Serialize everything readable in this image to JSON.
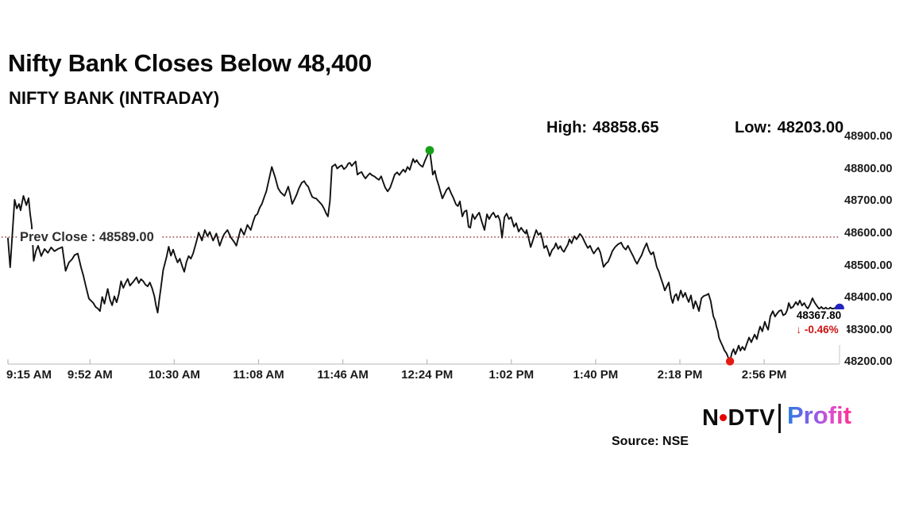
{
  "title": "Nifty Bank Closes Below 48,400",
  "subtitle": "NIFTY BANK (INTRADAY)",
  "stats": {
    "high_label": "High:",
    "high_value": "48858.65",
    "low_label": "Low:",
    "low_value": "48203.00"
  },
  "prev_close_label": "Prev Close : 48589.00",
  "last_quote": {
    "price": "48367.80",
    "arrow": "↓",
    "change": "-0.46%"
  },
  "footer": {
    "source": "Source: NSE",
    "logo_ndtv_n": "N",
    "logo_ndtv_dtv": "DTV",
    "logo_profit": "Profit"
  },
  "colors": {
    "line": "#111111",
    "prev_close_line": "#8b1b1b",
    "high_dot": "#18a018",
    "low_dot": "#e51b12",
    "last_dot": "#2323bd",
    "change_red": "#cc1111",
    "axis": "#cfcfcf",
    "tick": "#b9b9b9"
  },
  "chart_data": {
    "type": "line",
    "title": "NIFTY BANK (INTRADAY)",
    "xlabel": "",
    "ylabel": "",
    "x_unit": "minutes since 9:15 AM",
    "session": {
      "start": "9:15 AM",
      "end": "3:30 PM"
    },
    "x_ticks": [
      {
        "label": "9:15 AM",
        "t": 0
      },
      {
        "label": "9:52 AM",
        "t": 37
      },
      {
        "label": "10:30 AM",
        "t": 75
      },
      {
        "label": "11:08 AM",
        "t": 113
      },
      {
        "label": "11:46 AM",
        "t": 151
      },
      {
        "label": "12:24 PM",
        "t": 189
      },
      {
        "label": "1:02 PM",
        "t": 227
      },
      {
        "label": "1:40 PM",
        "t": 265
      },
      {
        "label": "2:18 PM",
        "t": 303
      },
      {
        "label": "2:56 PM",
        "t": 341
      }
    ],
    "y_ticks": [
      48900,
      48800,
      48700,
      48600,
      48500,
      48400,
      48300,
      48200
    ],
    "ylim": [
      48200,
      48900
    ],
    "grid": false,
    "legend": false,
    "prev_close": 48589.0,
    "high": 48858.65,
    "low": 48203.0,
    "close": 48367.8,
    "change_pct": -0.46,
    "markers": {
      "high": {
        "t": 190.2,
        "p": 48858.65
      },
      "low": {
        "t": 325.6,
        "p": 48203.0
      },
      "last": {
        "t": 375,
        "p": 48367.8
      }
    },
    "series": [
      [
        0,
        48585
      ],
      [
        0.5,
        48540
      ],
      [
        1,
        48495
      ],
      [
        2,
        48600
      ],
      [
        3,
        48705
      ],
      [
        4,
        48678
      ],
      [
        5,
        48692
      ],
      [
        5.7,
        48672
      ],
      [
        7,
        48717
      ],
      [
        8.3,
        48688
      ],
      [
        9.3,
        48710
      ],
      [
        10,
        48662
      ],
      [
        10.7,
        48625
      ],
      [
        11.6,
        48515
      ],
      [
        12.6,
        48545
      ],
      [
        13.6,
        48562
      ],
      [
        15,
        48530
      ],
      [
        16.5,
        48552
      ],
      [
        18,
        48540
      ],
      [
        19.5,
        48557
      ],
      [
        21,
        48545
      ],
      [
        22.5,
        48552
      ],
      [
        24.5,
        48558
      ],
      [
        26,
        48484
      ],
      [
        27.5,
        48510
      ],
      [
        29,
        48521
      ],
      [
        30,
        48533
      ],
      [
        31.5,
        48538
      ],
      [
        33,
        48494
      ],
      [
        34,
        48470
      ],
      [
        35,
        48440
      ],
      [
        36.5,
        48398
      ],
      [
        37.5,
        48391
      ],
      [
        38.5,
        48384
      ],
      [
        39.5,
        48372
      ],
      [
        40.5,
        48367
      ],
      [
        41.5,
        48359
      ],
      [
        42.5,
        48403
      ],
      [
        43.5,
        48382
      ],
      [
        45,
        48428
      ],
      [
        46,
        48395
      ],
      [
        47,
        48377
      ],
      [
        48,
        48405
      ],
      [
        49,
        48386
      ],
      [
        50,
        48412
      ],
      [
        51,
        48452
      ],
      [
        52,
        48431
      ],
      [
        53,
        48446
      ],
      [
        54,
        48459
      ],
      [
        55,
        48438
      ],
      [
        56.5,
        48450
      ],
      [
        58,
        48464
      ],
      [
        59,
        48446
      ],
      [
        60,
        48458
      ],
      [
        61,
        48452
      ],
      [
        62,
        48441
      ],
      [
        63,
        48436
      ],
      [
        64,
        48448
      ],
      [
        65,
        48430
      ],
      [
        66,
        48406
      ],
      [
        66.8,
        48375
      ],
      [
        67.5,
        48354
      ],
      [
        68.2,
        48392
      ],
      [
        69,
        48432
      ],
      [
        70,
        48486
      ],
      [
        71.5,
        48526
      ],
      [
        72.5,
        48559
      ],
      [
        73.5,
        48531
      ],
      [
        74.5,
        48550
      ],
      [
        75.5,
        48528
      ],
      [
        76.5,
        48510
      ],
      [
        77.5,
        48522
      ],
      [
        78.5,
        48500
      ],
      [
        79.5,
        48481
      ],
      [
        80.5,
        48512
      ],
      [
        81.5,
        48530
      ],
      [
        82.5,
        48522
      ],
      [
        83.5,
        48538
      ],
      [
        85,
        48575
      ],
      [
        86,
        48603
      ],
      [
        87.5,
        48578
      ],
      [
        88.8,
        48611
      ],
      [
        90,
        48592
      ],
      [
        91,
        48605
      ],
      [
        92.5,
        48578
      ],
      [
        94,
        48600
      ],
      [
        95.5,
        48562
      ],
      [
        96.5,
        48582
      ],
      [
        97.5,
        48598
      ],
      [
        99,
        48611
      ],
      [
        100.5,
        48588
      ],
      [
        102,
        48574
      ],
      [
        103,
        48562
      ],
      [
        104,
        48590
      ],
      [
        105,
        48615
      ],
      [
        106.5,
        48596
      ],
      [
        108,
        48627
      ],
      [
        109.5,
        48611
      ],
      [
        110.5,
        48635
      ],
      [
        111.5,
        48655
      ],
      [
        112.5,
        48661
      ],
      [
        113.5,
        48680
      ],
      [
        114.5,
        48692
      ],
      [
        115.5,
        48712
      ],
      [
        116.5,
        48731
      ],
      [
        117.5,
        48762
      ],
      [
        119,
        48807
      ],
      [
        120.5,
        48775
      ],
      [
        121.8,
        48741
      ],
      [
        123,
        48728
      ],
      [
        124.7,
        48717
      ],
      [
        126.4,
        48746
      ],
      [
        127.3,
        48721
      ],
      [
        128.2,
        48692
      ],
      [
        129.2,
        48706
      ],
      [
        130.2,
        48721
      ],
      [
        131.2,
        48740
      ],
      [
        132.5,
        48758
      ],
      [
        133.6,
        48763
      ],
      [
        134.5,
        48752
      ],
      [
        135.4,
        48746
      ],
      [
        136.3,
        48729
      ],
      [
        137.2,
        48714
      ],
      [
        138.2,
        48710
      ],
      [
        139,
        48709
      ],
      [
        140,
        48701
      ],
      [
        141.5,
        48690
      ],
      [
        142.5,
        48678
      ],
      [
        143.5,
        48662
      ],
      [
        144.3,
        48653
      ],
      [
        145.2,
        48701
      ],
      [
        146.1,
        48807
      ],
      [
        147,
        48812
      ],
      [
        147.6,
        48815
      ],
      [
        148.5,
        48802
      ],
      [
        149.5,
        48808
      ],
      [
        150.5,
        48812
      ],
      [
        151.5,
        48800
      ],
      [
        152.5,
        48806
      ],
      [
        153.5,
        48818
      ],
      [
        154.2,
        48820
      ],
      [
        155,
        48810
      ],
      [
        156,
        48818
      ],
      [
        156.8,
        48824
      ],
      [
        157.6,
        48783
      ],
      [
        158.5,
        48788
      ],
      [
        159.5,
        48791
      ],
      [
        160.3,
        48780
      ],
      [
        161.2,
        48771
      ],
      [
        162.2,
        48780
      ],
      [
        163.2,
        48787
      ],
      [
        164.2,
        48781
      ],
      [
        165.2,
        48778
      ],
      [
        166.2,
        48772
      ],
      [
        167.3,
        48767
      ],
      [
        168.3,
        48778
      ],
      [
        169.2,
        48760
      ],
      [
        170.1,
        48743
      ],
      [
        171.2,
        48731
      ],
      [
        172.3,
        48742
      ],
      [
        173.3,
        48761
      ],
      [
        174.4,
        48783
      ],
      [
        175.5,
        48790
      ],
      [
        176.5,
        48782
      ],
      [
        177.5,
        48792
      ],
      [
        178.3,
        48799
      ],
      [
        179.2,
        48791
      ],
      [
        180.2,
        48807
      ],
      [
        181.2,
        48798
      ],
      [
        182,
        48816
      ],
      [
        182.7,
        48832
      ],
      [
        183.5,
        48821
      ],
      [
        184.3,
        48828
      ],
      [
        185.2,
        48818
      ],
      [
        186,
        48812
      ],
      [
        187,
        48807
      ],
      [
        188.1,
        48827
      ],
      [
        189,
        48841
      ],
      [
        190.2,
        48858.65
      ],
      [
        191,
        48816
      ],
      [
        191.6,
        48783
      ],
      [
        192.5,
        48795
      ],
      [
        193.3,
        48770
      ],
      [
        194.1,
        48753
      ],
      [
        195,
        48731
      ],
      [
        195.9,
        48709
      ],
      [
        196.8,
        48722
      ],
      [
        197.8,
        48736
      ],
      [
        198.8,
        48743
      ],
      [
        199.8,
        48726
      ],
      [
        200.8,
        48712
      ],
      [
        202,
        48691
      ],
      [
        202.9,
        48685
      ],
      [
        203.8,
        48700
      ],
      [
        204.9,
        48653
      ],
      [
        205.8,
        48668
      ],
      [
        206.8,
        48672
      ],
      [
        207.7,
        48621
      ],
      [
        208.5,
        48618
      ],
      [
        209.5,
        48660
      ],
      [
        210.5,
        48645
      ],
      [
        211.5,
        48656
      ],
      [
        212.5,
        48665
      ],
      [
        213.7,
        48636
      ],
      [
        214.9,
        48611
      ],
      [
        216,
        48660
      ],
      [
        217,
        48645
      ],
      [
        218,
        48658
      ],
      [
        218.9,
        48665
      ],
      [
        220,
        48650
      ],
      [
        221,
        48656
      ],
      [
        221.9,
        48640
      ],
      [
        222.8,
        48587
      ],
      [
        223.9,
        48651
      ],
      [
        224.9,
        48662
      ],
      [
        225.9,
        48645
      ],
      [
        226.9,
        48651
      ],
      [
        228.2,
        48621
      ],
      [
        229.2,
        48632
      ],
      [
        230.3,
        48606
      ],
      [
        231.4,
        48618
      ],
      [
        232.4,
        48608
      ],
      [
        233.4,
        48600
      ],
      [
        233.9,
        48611
      ],
      [
        234.6,
        48591
      ],
      [
        235.3,
        48570
      ],
      [
        235.7,
        48558
      ],
      [
        236.4,
        48572
      ],
      [
        237.1,
        48587
      ],
      [
        238.2,
        48611
      ],
      [
        239.2,
        48596
      ],
      [
        240.2,
        48602
      ],
      [
        241,
        48581
      ],
      [
        241.8,
        48555
      ],
      [
        242.8,
        48562
      ],
      [
        243.5,
        48548
      ],
      [
        244.3,
        48530
      ],
      [
        245.3,
        48548
      ],
      [
        246.3,
        48556
      ],
      [
        247.1,
        48570
      ],
      [
        248.1,
        48552
      ],
      [
        249.1,
        48561
      ],
      [
        250,
        48548
      ],
      [
        250.7,
        48543
      ],
      [
        251.7,
        48556
      ],
      [
        252.5,
        48566
      ],
      [
        253.2,
        48582
      ],
      [
        254.2,
        48570
      ],
      [
        255.4,
        48592
      ],
      [
        256.4,
        48582
      ],
      [
        257.9,
        48599
      ],
      [
        259,
        48590
      ],
      [
        260.2,
        48572
      ],
      [
        261.5,
        48555
      ],
      [
        262.5,
        48562
      ],
      [
        263.5,
        48546
      ],
      [
        264.2,
        48538
      ],
      [
        265.2,
        48548
      ],
      [
        266.2,
        48556
      ],
      [
        267.2,
        48540
      ],
      [
        268.6,
        48496
      ],
      [
        269.6,
        48506
      ],
      [
        270.6,
        48512
      ],
      [
        271.6,
        48528
      ],
      [
        272.6,
        48546
      ],
      [
        273.8,
        48558
      ],
      [
        275,
        48566
      ],
      [
        276.5,
        48572
      ],
      [
        277.5,
        48558
      ],
      [
        278.6,
        48550
      ],
      [
        279.6,
        48562
      ],
      [
        280.7,
        48546
      ],
      [
        281.9,
        48530
      ],
      [
        282.8,
        48516
      ],
      [
        283.7,
        48506
      ],
      [
        284.7,
        48520
      ],
      [
        285.7,
        48532
      ],
      [
        286.8,
        48552
      ],
      [
        288,
        48570
      ],
      [
        289,
        48548
      ],
      [
        290,
        48535
      ],
      [
        291,
        48542
      ],
      [
        291.8,
        48520
      ],
      [
        292.6,
        48496
      ],
      [
        293.5,
        48482
      ],
      [
        294.4,
        48462
      ],
      [
        295.5,
        48440
      ],
      [
        296.2,
        48423
      ],
      [
        297.1,
        48436
      ],
      [
        298,
        48448
      ],
      [
        298.6,
        48420
      ],
      [
        299.1,
        48399
      ],
      [
        299.8,
        48384
      ],
      [
        300.6,
        48406
      ],
      [
        301.4,
        48412
      ],
      [
        302.2,
        48392
      ],
      [
        303.4,
        48423
      ],
      [
        304.4,
        48402
      ],
      [
        305.4,
        48416
      ],
      [
        306.2,
        48400
      ],
      [
        307,
        48387
      ],
      [
        308,
        48408
      ],
      [
        309.1,
        48367
      ],
      [
        310,
        48390
      ],
      [
        310.8,
        48376
      ],
      [
        311.6,
        48359
      ],
      [
        312.7,
        48399
      ],
      [
        313.8,
        48406
      ],
      [
        315,
        48409
      ],
      [
        315.9,
        48413
      ],
      [
        316.9,
        48390
      ],
      [
        318.1,
        48343
      ],
      [
        319,
        48328
      ],
      [
        319.5,
        48311
      ],
      [
        320.2,
        48295
      ],
      [
        320.6,
        48277
      ],
      [
        321.5,
        48262
      ],
      [
        322.3,
        48250
      ],
      [
        323.1,
        48237
      ],
      [
        324,
        48228
      ],
      [
        324.8,
        48215
      ],
      [
        325.6,
        48203
      ],
      [
        326.4,
        48228
      ],
      [
        327.2,
        48241
      ],
      [
        328,
        48225
      ],
      [
        328.8,
        48238
      ],
      [
        329.5,
        48252
      ],
      [
        330.3,
        48236
      ],
      [
        331.2,
        48248
      ],
      [
        332.2,
        48238
      ],
      [
        333.2,
        48258
      ],
      [
        334.2,
        48277
      ],
      [
        335.2,
        48262
      ],
      [
        336,
        48275
      ],
      [
        336.7,
        48286
      ],
      [
        337.7,
        48272
      ],
      [
        338.5,
        48295
      ],
      [
        339.2,
        48311
      ],
      [
        340.2,
        48296
      ],
      [
        341.3,
        48326
      ],
      [
        342,
        48312
      ],
      [
        342.8,
        48301
      ],
      [
        343.8,
        48343
      ],
      [
        344.9,
        48359
      ],
      [
        345.9,
        48342
      ],
      [
        346.9,
        48352
      ],
      [
        347.9,
        48360
      ],
      [
        348.7,
        48362
      ],
      [
        349.6,
        48346
      ],
      [
        350.6,
        48350
      ],
      [
        351.4,
        48362
      ],
      [
        352.1,
        48384
      ],
      [
        353,
        48368
      ],
      [
        354,
        48372
      ],
      [
        355.3,
        48387
      ],
      [
        356.2,
        48378
      ],
      [
        357.1,
        48392
      ],
      [
        358.1,
        48376
      ],
      [
        359.1,
        48384
      ],
      [
        360,
        48372
      ],
      [
        360.7,
        48367
      ],
      [
        361.7,
        48380
      ],
      [
        362.8,
        48399
      ],
      [
        363.8,
        48385
      ],
      [
        364.8,
        48375
      ],
      [
        365.8,
        48366
      ],
      [
        366.8,
        48372
      ],
      [
        367.8,
        48365
      ],
      [
        368.8,
        48370
      ],
      [
        369.8,
        48364
      ],
      [
        370.8,
        48370
      ],
      [
        371.8,
        48366
      ],
      [
        372.8,
        48368
      ],
      [
        373.8,
        48372
      ],
      [
        375,
        48367.8
      ]
    ]
  }
}
